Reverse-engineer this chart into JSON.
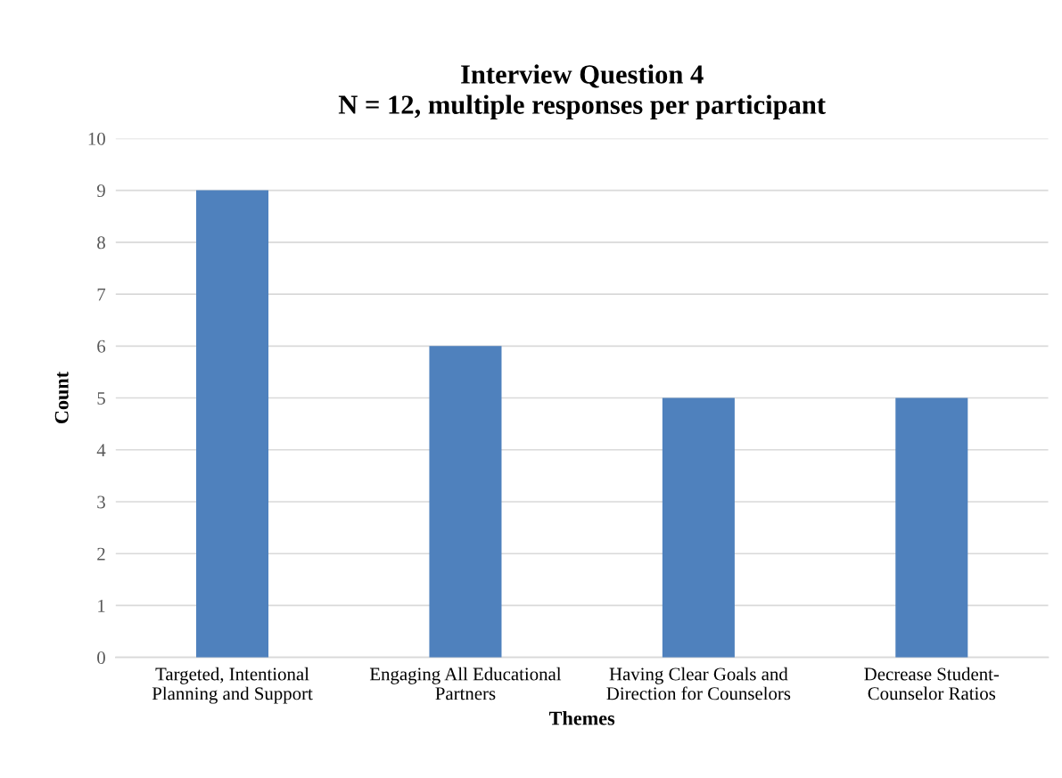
{
  "chart_data": {
    "type": "bar",
    "title": "Interview Question 4\nN = 12, multiple responses per participant",
    "xlabel": "Themes",
    "ylabel": "Count",
    "categories": [
      "Targeted, Intentional\nPlanning and Support",
      "Engaging All Educational\nPartners",
      "Having Clear Goals and\nDirection for Counselors",
      "Decrease Student-\nCounselor Ratios"
    ],
    "values": [
      9,
      6,
      5,
      5
    ],
    "color": "#4f81bd",
    "ylim": [
      0,
      10
    ],
    "yticks": [
      0,
      1,
      2,
      3,
      4,
      5,
      6,
      7,
      8,
      9,
      10
    ],
    "grid": "y",
    "legend": false
  }
}
